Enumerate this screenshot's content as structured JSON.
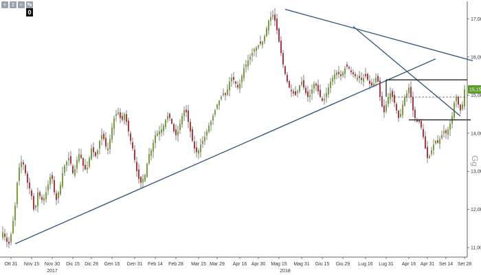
{
  "toolbar": {
    "buttons": [
      {
        "name": "plus-icon",
        "glyph": "+"
      },
      {
        "name": "zoom-icon",
        "glyph": "z"
      },
      {
        "name": "magnify-icon",
        "glyph": "⌕"
      },
      {
        "name": "pan-icon",
        "glyph": "↹"
      }
    ],
    "zero_label": "0"
  },
  "watermark": "Gg",
  "colors": {
    "up": "#6a9a2a",
    "down": "#b3262f",
    "trendline": "#3a5a80",
    "level": "#111111",
    "last_price_bg": "#5b9b27"
  },
  "chart_data": {
    "type": "candlestick",
    "ylim": [
      10.75,
      17.35
    ],
    "y_ticks": [
      {
        "value": 17,
        "label": "17,00"
      },
      {
        "value": 16,
        "label": "16,00"
      },
      {
        "value": 15,
        "label": "15,00"
      },
      {
        "value": 14,
        "label": "14,00"
      },
      {
        "value": 13,
        "label": "13,00"
      },
      {
        "value": 12,
        "label": "12,00"
      },
      {
        "value": 11,
        "label": "11,00"
      }
    ],
    "x_ticks": [
      {
        "label": "Ott 31",
        "index": 4
      },
      {
        "label": "Nov 15",
        "index": 14
      },
      {
        "label": "Nov 30",
        "index": 24
      },
      {
        "label": "Dic 15",
        "index": 34
      },
      {
        "label": "Dic 29",
        "index": 43
      },
      {
        "label": "Gen 15",
        "index": 53
      },
      {
        "label": "Gen 31",
        "index": 64
      },
      {
        "label": "Feb 14",
        "index": 74
      },
      {
        "label": "Feb 28",
        "index": 84
      },
      {
        "label": "Mar 15",
        "index": 95
      },
      {
        "label": "Mar 29",
        "index": 104
      },
      {
        "label": "Apr 16",
        "index": 115
      },
      {
        "label": "Apr 30",
        "index": 124
      },
      {
        "label": "Mag 15",
        "index": 134
      },
      {
        "label": "Mag 31",
        "index": 145
      },
      {
        "label": "Giu 15",
        "index": 155
      },
      {
        "label": "Giu 29",
        "index": 165
      },
      {
        "label": "Lug 16",
        "index": 176
      },
      {
        "label": "Lug 31",
        "index": 186
      },
      {
        "label": "Apr 16",
        "index": 197
      },
      {
        "label": "Apr 31",
        "index": 206
      },
      {
        "label": "Set 14",
        "index": 215
      },
      {
        "label": "Set 28",
        "index": 224
      }
    ],
    "year_labels": [
      {
        "label": "2017",
        "index": 24
      },
      {
        "label": "2018",
        "index": 137
      }
    ],
    "last_price": {
      "value": 15.15,
      "label": "15,15"
    },
    "reference_level": 14.95,
    "support_level": 14.35,
    "resistance_box": {
      "start_index": 186,
      "level": 15.4
    },
    "trendlines": [
      {
        "x1": 6,
        "y1": 11.1,
        "x2": 210,
        "y2": 15.95
      },
      {
        "x1": 137,
        "y1": 17.25,
        "x2": 228,
        "y2": 15.9
      },
      {
        "x1": 170,
        "y1": 16.8,
        "x2": 222,
        "y2": 14.45
      }
    ],
    "series": [
      {
        "name": "",
        "close": [
          11.4,
          11.28,
          11.15,
          11.1,
          11.35,
          11.7,
          12.1,
          12.7,
          13.1,
          13.25,
          13.18,
          12.95,
          12.7,
          12.55,
          12.35,
          12.0,
          12.1,
          12.45,
          12.35,
          12.25,
          12.3,
          12.45,
          12.65,
          12.85,
          12.8,
          12.45,
          12.25,
          12.45,
          12.65,
          12.95,
          13.15,
          13.25,
          13.35,
          13.2,
          12.95,
          13.05,
          13.3,
          13.45,
          13.35,
          13.15,
          13.05,
          13.1,
          13.35,
          13.6,
          13.5,
          13.4,
          13.55,
          13.8,
          13.95,
          13.85,
          13.65,
          13.6,
          13.85,
          14.15,
          14.4,
          14.5,
          14.55,
          14.4,
          14.35,
          14.5,
          14.3,
          14.05,
          13.8,
          13.6,
          13.3,
          13.0,
          12.8,
          12.7,
          12.8,
          12.9,
          13.2,
          13.45,
          13.55,
          13.75,
          13.95,
          14.0,
          14.05,
          14.1,
          14.2,
          14.35,
          14.45,
          14.4,
          14.25,
          14.05,
          13.95,
          14.05,
          14.25,
          14.45,
          14.6,
          14.55,
          14.3,
          14.05,
          13.8,
          13.6,
          13.5,
          13.55,
          13.7,
          13.8,
          13.9,
          14.05,
          14.2,
          14.3,
          14.45,
          14.6,
          14.75,
          14.85,
          14.95,
          15.05,
          15.0,
          15.15,
          15.35,
          15.45,
          15.4,
          15.3,
          15.2,
          15.3,
          15.5,
          15.7,
          15.8,
          15.9,
          16.0,
          16.1,
          16.2,
          16.25,
          16.3,
          16.35,
          16.4,
          16.55,
          16.75,
          16.95,
          17.05,
          17.1,
          16.95,
          16.7,
          16.4,
          16.1,
          15.8,
          15.55,
          15.35,
          15.2,
          15.1,
          15.05,
          15.0,
          15.1,
          15.25,
          15.35,
          15.2,
          15.05,
          14.95,
          15.0,
          15.15,
          15.3,
          15.25,
          15.1,
          14.95,
          14.85,
          14.9,
          15.05,
          15.2,
          15.35,
          15.45,
          15.55,
          15.6,
          15.55,
          15.5,
          15.6,
          15.7,
          15.75,
          15.7,
          15.6,
          15.55,
          15.5,
          15.45,
          15.45,
          15.4,
          15.45,
          15.5,
          15.4,
          15.3,
          15.25,
          15.3,
          15.45,
          15.35,
          14.95,
          14.7,
          14.55,
          14.75,
          14.95,
          15.05,
          14.95,
          14.8,
          14.6,
          14.4,
          14.5,
          14.75,
          14.95,
          15.05,
          15.2,
          14.95,
          14.6,
          14.4,
          14.3,
          14.3,
          14.15,
          13.9,
          13.6,
          13.35,
          13.4,
          13.55,
          13.7,
          13.8,
          13.75,
          13.85,
          13.95,
          14.05,
          14.0,
          14.1,
          14.25,
          14.45,
          14.8,
          14.95,
          14.75,
          14.6,
          14.75,
          15.15
        ]
      }
    ]
  }
}
